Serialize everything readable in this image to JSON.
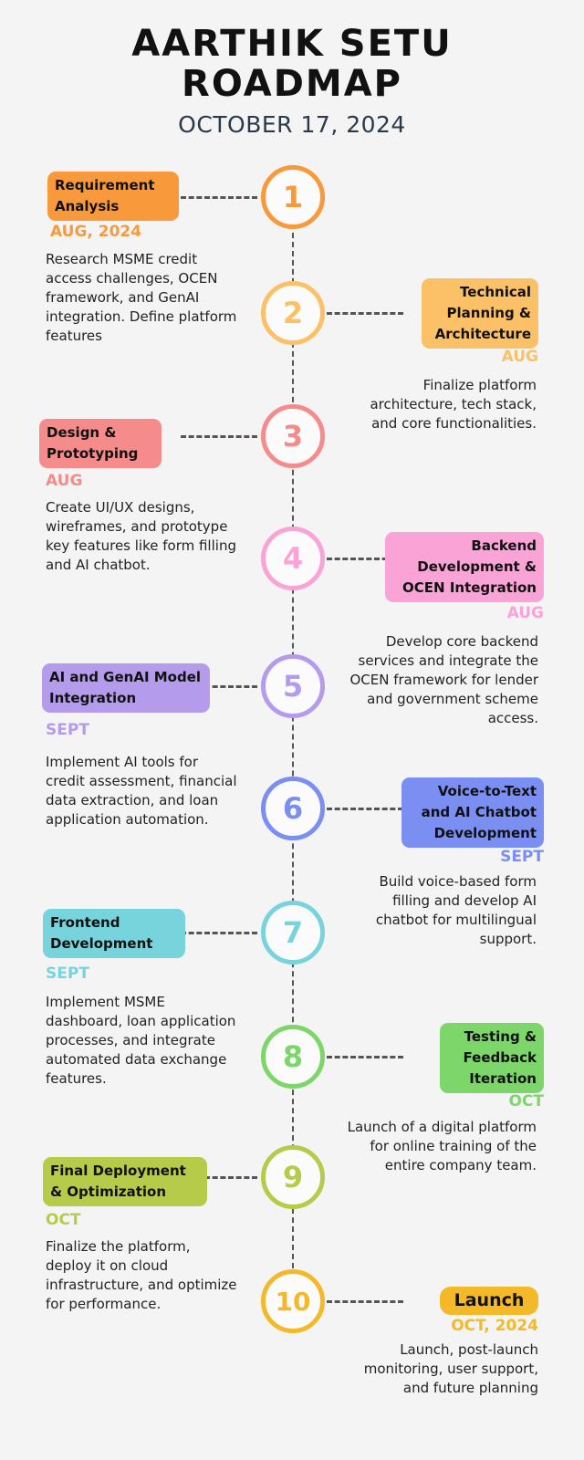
{
  "header": {
    "title_line1": "AARTHIK SETU",
    "title_line2": "ROADMAP",
    "date": "OCTOBER 17, 2024"
  },
  "steps": [
    {
      "number": "1",
      "title": "Requirement Analysis",
      "date": "AUG, 2024",
      "description": "Research MSME credit access challenges, OCEN framework, and GenAI integration. Define platform features",
      "color": "#f89a3b"
    },
    {
      "number": "2",
      "title": "Technical Planning & Architecture",
      "date": "AUG",
      "description": "Finalize platform architecture, tech stack, and core functionalities.",
      "color": "#fcc166"
    },
    {
      "number": "3",
      "title": "Design & Prototyping",
      "date": "AUG",
      "description": "Create UI/UX designs, wireframes, and prototype key features like form filling and AI chatbot.",
      "color": "#f58b8b"
    },
    {
      "number": "4",
      "title": "Backend Development & OCEN Integration",
      "date": "AUG",
      "description": "Develop core backend services and integrate the OCEN framework for lender and government scheme access.",
      "color": "#f9a3d7"
    },
    {
      "number": "5",
      "title": "AI and GenAI Model Integration",
      "date": "SEPT",
      "description": "Implement AI tools for credit assessment, financial data extraction, and loan application automation.",
      "color": "#b49bec"
    },
    {
      "number": "6",
      "title": "Voice-to-Text and AI Chatbot Development",
      "date": "SEPT",
      "description": "Build voice-based form filling and develop AI chatbot for multilingual support.",
      "color": "#7b8ef2"
    },
    {
      "number": "7",
      "title": "Frontend Development",
      "date": "SEPT",
      "description": "Implement MSME dashboard, loan application processes, and integrate automated data exchange features.",
      "color": "#77d4dc"
    },
    {
      "number": "8",
      "title": "Testing & Feedback Iteration",
      "date": "OCT",
      "description": "Launch of a digital platform for online training of the entire company team.",
      "color": "#7cd66a"
    },
    {
      "number": "9",
      "title": "Final Deployment & Optimization",
      "date": "OCT",
      "description": "Finalize the platform, deploy it on cloud infrastructure, and optimize for performance.",
      "color": "#b7cb4a"
    },
    {
      "number": "10",
      "title": "Launch",
      "date": "OCT, 2024",
      "description": "Launch, post-launch monitoring, user support, and future planning",
      "color": "#f4b928"
    }
  ]
}
